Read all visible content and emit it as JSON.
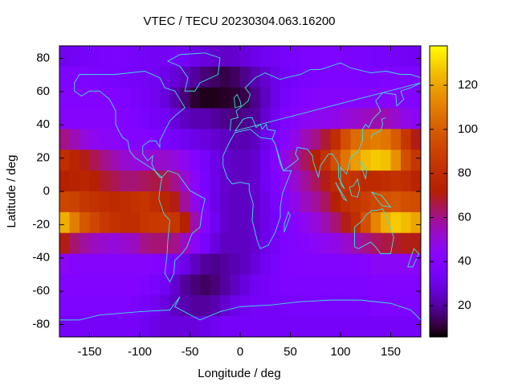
{
  "chart_data": {
    "type": "heatmap",
    "title": "VTEC / TECU 20230304.063.16200",
    "xlabel": "Longitude / deg",
    "ylabel": "Latitude / deg",
    "xlim": [
      -180,
      180
    ],
    "ylim": [
      -87.5,
      87.5
    ],
    "xticks": [
      -150,
      -100,
      -50,
      0,
      50,
      100,
      150
    ],
    "yticks": [
      -80,
      -60,
      -40,
      -20,
      0,
      20,
      40,
      60,
      80
    ],
    "zlim": [
      5.8,
      137.9
    ],
    "zticks": [
      20,
      40,
      60,
      80,
      100,
      120
    ],
    "x": [
      -175,
      -165,
      -155,
      -145,
      -135,
      -125,
      -115,
      -105,
      -95,
      -85,
      -75,
      -65,
      -55,
      -45,
      -35,
      -25,
      -15,
      -5,
      5,
      15,
      25,
      35,
      45,
      55,
      65,
      75,
      85,
      95,
      105,
      115,
      125,
      135,
      145,
      155,
      165,
      175
    ],
    "y": [
      81.25,
      68.75,
      56.25,
      43.75,
      31.25,
      18.75,
      6.25,
      -6.25,
      -18.75,
      -31.25,
      -43.75,
      -56.25,
      -68.75,
      -81.25
    ],
    "values": [
      [
        32,
        33,
        34,
        35,
        36,
        37,
        36,
        35,
        34,
        33,
        33,
        34,
        33,
        30,
        28,
        26,
        25,
        26,
        28,
        30,
        32,
        33,
        35,
        36,
        37,
        37,
        38,
        38,
        37,
        36,
        36,
        35,
        35,
        34,
        33,
        32
      ],
      [
        38,
        38,
        38,
        37,
        36,
        36,
        35,
        34,
        33,
        32,
        30,
        27,
        24,
        20,
        16,
        14,
        12,
        14,
        18,
        22,
        26,
        30,
        33,
        35,
        36,
        37,
        38,
        38,
        38,
        38,
        37,
        37,
        38,
        38,
        38,
        38
      ],
      [
        40,
        40,
        40,
        40,
        40,
        40,
        38,
        36,
        34,
        32,
        28,
        22,
        16,
        10,
        8,
        8,
        9,
        10,
        12,
        18,
        24,
        30,
        35,
        38,
        40,
        42,
        42,
        42,
        42,
        42,
        42,
        42,
        42,
        42,
        41,
        40
      ],
      [
        42,
        42,
        42,
        42,
        42,
        42,
        40,
        38,
        36,
        34,
        32,
        28,
        24,
        22,
        22,
        20,
        18,
        16,
        18,
        20,
        26,
        32,
        38,
        42,
        45,
        46,
        46,
        48,
        50,
        52,
        54,
        56,
        55,
        52,
        48,
        45
      ],
      [
        60,
        55,
        50,
        46,
        44,
        44,
        42,
        40,
        40,
        38,
        36,
        34,
        32,
        30,
        28,
        26,
        24,
        22,
        22,
        24,
        30,
        36,
        42,
        48,
        55,
        60,
        68,
        80,
        95,
        105,
        108,
        110,
        108,
        100,
        85,
        70
      ],
      [
        80,
        75,
        70,
        65,
        60,
        56,
        52,
        50,
        50,
        52,
        52,
        50,
        46,
        40,
        35,
        30,
        26,
        24,
        24,
        26,
        32,
        40,
        48,
        56,
        64,
        72,
        82,
        95,
        108,
        118,
        125,
        128,
        126,
        115,
        95,
        85
      ],
      [
        72,
        74,
        75,
        72,
        68,
        65,
        62,
        62,
        64,
        66,
        65,
        60,
        52,
        44,
        36,
        30,
        26,
        24,
        24,
        26,
        32,
        38,
        45,
        52,
        58,
        64,
        70,
        78,
        84,
        82,
        78,
        78,
        80,
        82,
        80,
        75
      ],
      [
        92,
        90,
        85,
        82,
        80,
        78,
        80,
        82,
        84,
        80,
        76,
        70,
        58,
        48,
        38,
        30,
        26,
        24,
        24,
        26,
        30,
        36,
        42,
        48,
        54,
        58,
        64,
        72,
        80,
        84,
        88,
        92,
        96,
        98,
        95,
        94
      ],
      [
        122,
        110,
        98,
        92,
        86,
        82,
        80,
        80,
        84,
        86,
        86,
        84,
        72,
        56,
        42,
        32,
        26,
        24,
        24,
        26,
        30,
        34,
        38,
        42,
        46,
        50,
        56,
        62,
        70,
        80,
        95,
        112,
        122,
        128,
        125,
        120
      ],
      [
        70,
        62,
        58,
        54,
        52,
        50,
        52,
        54,
        60,
        62,
        62,
        60,
        54,
        44,
        36,
        28,
        24,
        24,
        24,
        26,
        30,
        34,
        38,
        40,
        42,
        44,
        46,
        48,
        52,
        56,
        60,
        64,
        66,
        68,
        70,
        70
      ],
      [
        44,
        42,
        42,
        42,
        42,
        42,
        42,
        42,
        42,
        40,
        38,
        36,
        30,
        24,
        20,
        18,
        20,
        22,
        24,
        28,
        32,
        36,
        38,
        40,
        40,
        40,
        40,
        40,
        40,
        40,
        42,
        44,
        44,
        44,
        44,
        44
      ],
      [
        40,
        40,
        40,
        40,
        40,
        40,
        40,
        40,
        38,
        36,
        32,
        26,
        20,
        16,
        14,
        16,
        20,
        24,
        28,
        32,
        34,
        36,
        38,
        38,
        38,
        38,
        38,
        38,
        38,
        38,
        38,
        40,
        40,
        40,
        40,
        40
      ],
      [
        38,
        38,
        38,
        38,
        38,
        38,
        38,
        36,
        34,
        32,
        28,
        24,
        22,
        20,
        20,
        22,
        26,
        30,
        32,
        34,
        34,
        34,
        35,
        36,
        36,
        36,
        36,
        36,
        36,
        36,
        36,
        38,
        38,
        38,
        38,
        38
      ],
      [
        34,
        34,
        34,
        34,
        34,
        34,
        34,
        34,
        32,
        30,
        28,
        28,
        28,
        28,
        30,
        32,
        34,
        34,
        34,
        34,
        34,
        34,
        34,
        34,
        34,
        34,
        34,
        34,
        34,
        34,
        34,
        34,
        34,
        34,
        34,
        34
      ]
    ]
  }
}
